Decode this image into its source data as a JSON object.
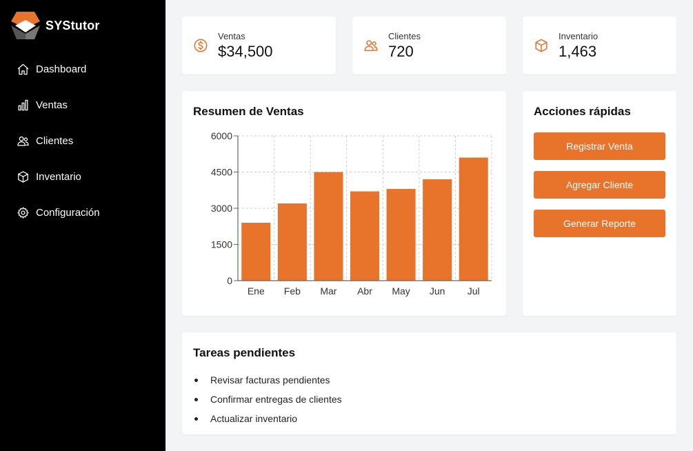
{
  "app": {
    "name": "SYStutor"
  },
  "colors": {
    "accent": "#e8732a",
    "sidebar_bg": "#000000",
    "page_bg": "#f3f4f6"
  },
  "sidebar": {
    "items": [
      {
        "label": "Dashboard",
        "icon": "home-icon"
      },
      {
        "label": "Ventas",
        "icon": "bar-chart-icon"
      },
      {
        "label": "Clientes",
        "icon": "users-icon"
      },
      {
        "label": "Inventario",
        "icon": "box-icon"
      },
      {
        "label": "Configuración",
        "icon": "gear-icon"
      }
    ]
  },
  "stats": [
    {
      "label": "Ventas",
      "value": "$34,500",
      "icon": "dollar-icon"
    },
    {
      "label": "Clientes",
      "value": "720",
      "icon": "users-icon"
    },
    {
      "label": "Inventario",
      "value": "1,463",
      "icon": "box-icon"
    }
  ],
  "sales_card": {
    "title": "Resumen de Ventas"
  },
  "chart_data": {
    "type": "bar",
    "categories": [
      "Ene",
      "Feb",
      "Mar",
      "Abr",
      "May",
      "Jun",
      "Jul"
    ],
    "values": [
      2400,
      3200,
      4500,
      3700,
      3800,
      4200,
      5100
    ],
    "yticks": [
      "0",
      "1500",
      "3000",
      "4500",
      "6000"
    ],
    "ylim": [
      0,
      6000
    ],
    "grid": true,
    "color": "#e8732a"
  },
  "quick_actions": {
    "title": "Acciones rápidas",
    "buttons": [
      "Registrar Venta",
      "Agregar Cliente",
      "Generar Reporte"
    ]
  },
  "tasks": {
    "title": "Tareas pendientes",
    "items": [
      "Revisar facturas pendientes",
      "Confirmar entregas de clientes",
      "Actualizar inventario"
    ]
  }
}
